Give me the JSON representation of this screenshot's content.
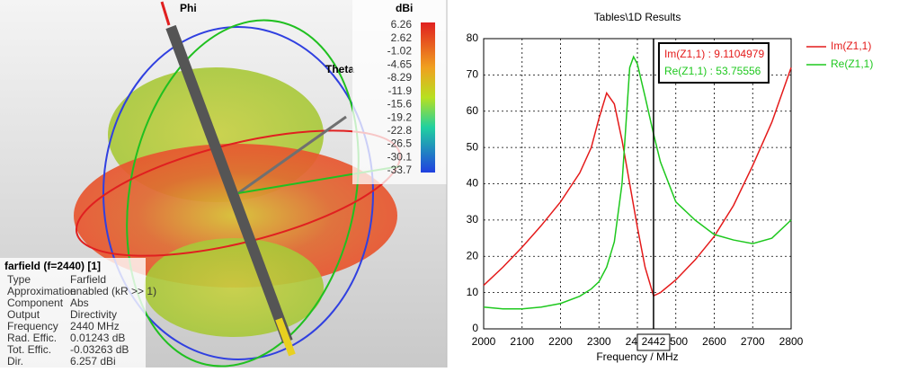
{
  "view3d": {
    "axis_labels": [
      "Phi",
      "Theta"
    ],
    "colorbar": {
      "unit": "dBi",
      "labels": [
        6.26,
        2.62,
        -1.02,
        -4.65,
        -8.29,
        -11.9,
        -15.6,
        -19.2,
        -22.8,
        -26.5,
        -30.1,
        -33.7
      ]
    },
    "info": {
      "title": "farfield (f=2440) [1]",
      "rows": [
        [
          "Type",
          "Farfield"
        ],
        [
          "Approximation",
          "enabled (kR >> 1)"
        ],
        [
          "Component",
          "Abs"
        ],
        [
          "Output",
          "Directivity"
        ],
        [
          "Frequency",
          "2440 MHz"
        ],
        [
          "Rad. Effic.",
          "0.01243 dB"
        ],
        [
          "Tot. Effic.",
          "-0.03263 dB"
        ],
        [
          "Dir.",
          "6.257 dBi"
        ]
      ]
    }
  },
  "chart_data": {
    "type": "line",
    "title": "Tables\\1D Results",
    "x_label": "Frequency / MHz",
    "x": [
      2000,
      2050,
      2100,
      2150,
      2200,
      2250,
      2280,
      2300,
      2320,
      2340,
      2360,
      2380,
      2390,
      2400,
      2420,
      2442,
      2460,
      2500,
      2550,
      2600,
      2650,
      2700,
      2750,
      2800
    ],
    "series": [
      {
        "name": "Im(Z1,1)",
        "color": "#e41a1a",
        "values": [
          12,
          17,
          22.5,
          28.5,
          35,
          43,
          50,
          58,
          65,
          62,
          52,
          40,
          34,
          28,
          17,
          9.11,
          10,
          13.5,
          19,
          25.5,
          34,
          45,
          57,
          72
        ]
      },
      {
        "name": "Re(Z1,1)",
        "color": "#1ec81e",
        "values": [
          6,
          5.5,
          5.5,
          6,
          7,
          9,
          11,
          13,
          17,
          24,
          40,
          72,
          75,
          73,
          64,
          53.76,
          46,
          35,
          30,
          26,
          24.5,
          23.5,
          25,
          30
        ]
      }
    ],
    "xlim": [
      2000,
      2800
    ],
    "xticks": [
      2000,
      2100,
      2200,
      2300,
      2400,
      2500,
      2600,
      2700,
      2800
    ],
    "ylim": [
      0,
      80
    ],
    "yticks": [
      0,
      10,
      20,
      30,
      40,
      50,
      60,
      70,
      80
    ],
    "grid": true,
    "marker": {
      "x": 2442
    },
    "annotations": [
      "Im(Z1,1) : 9.1104979",
      "Re(Z1,1) : 53.75556"
    ]
  }
}
